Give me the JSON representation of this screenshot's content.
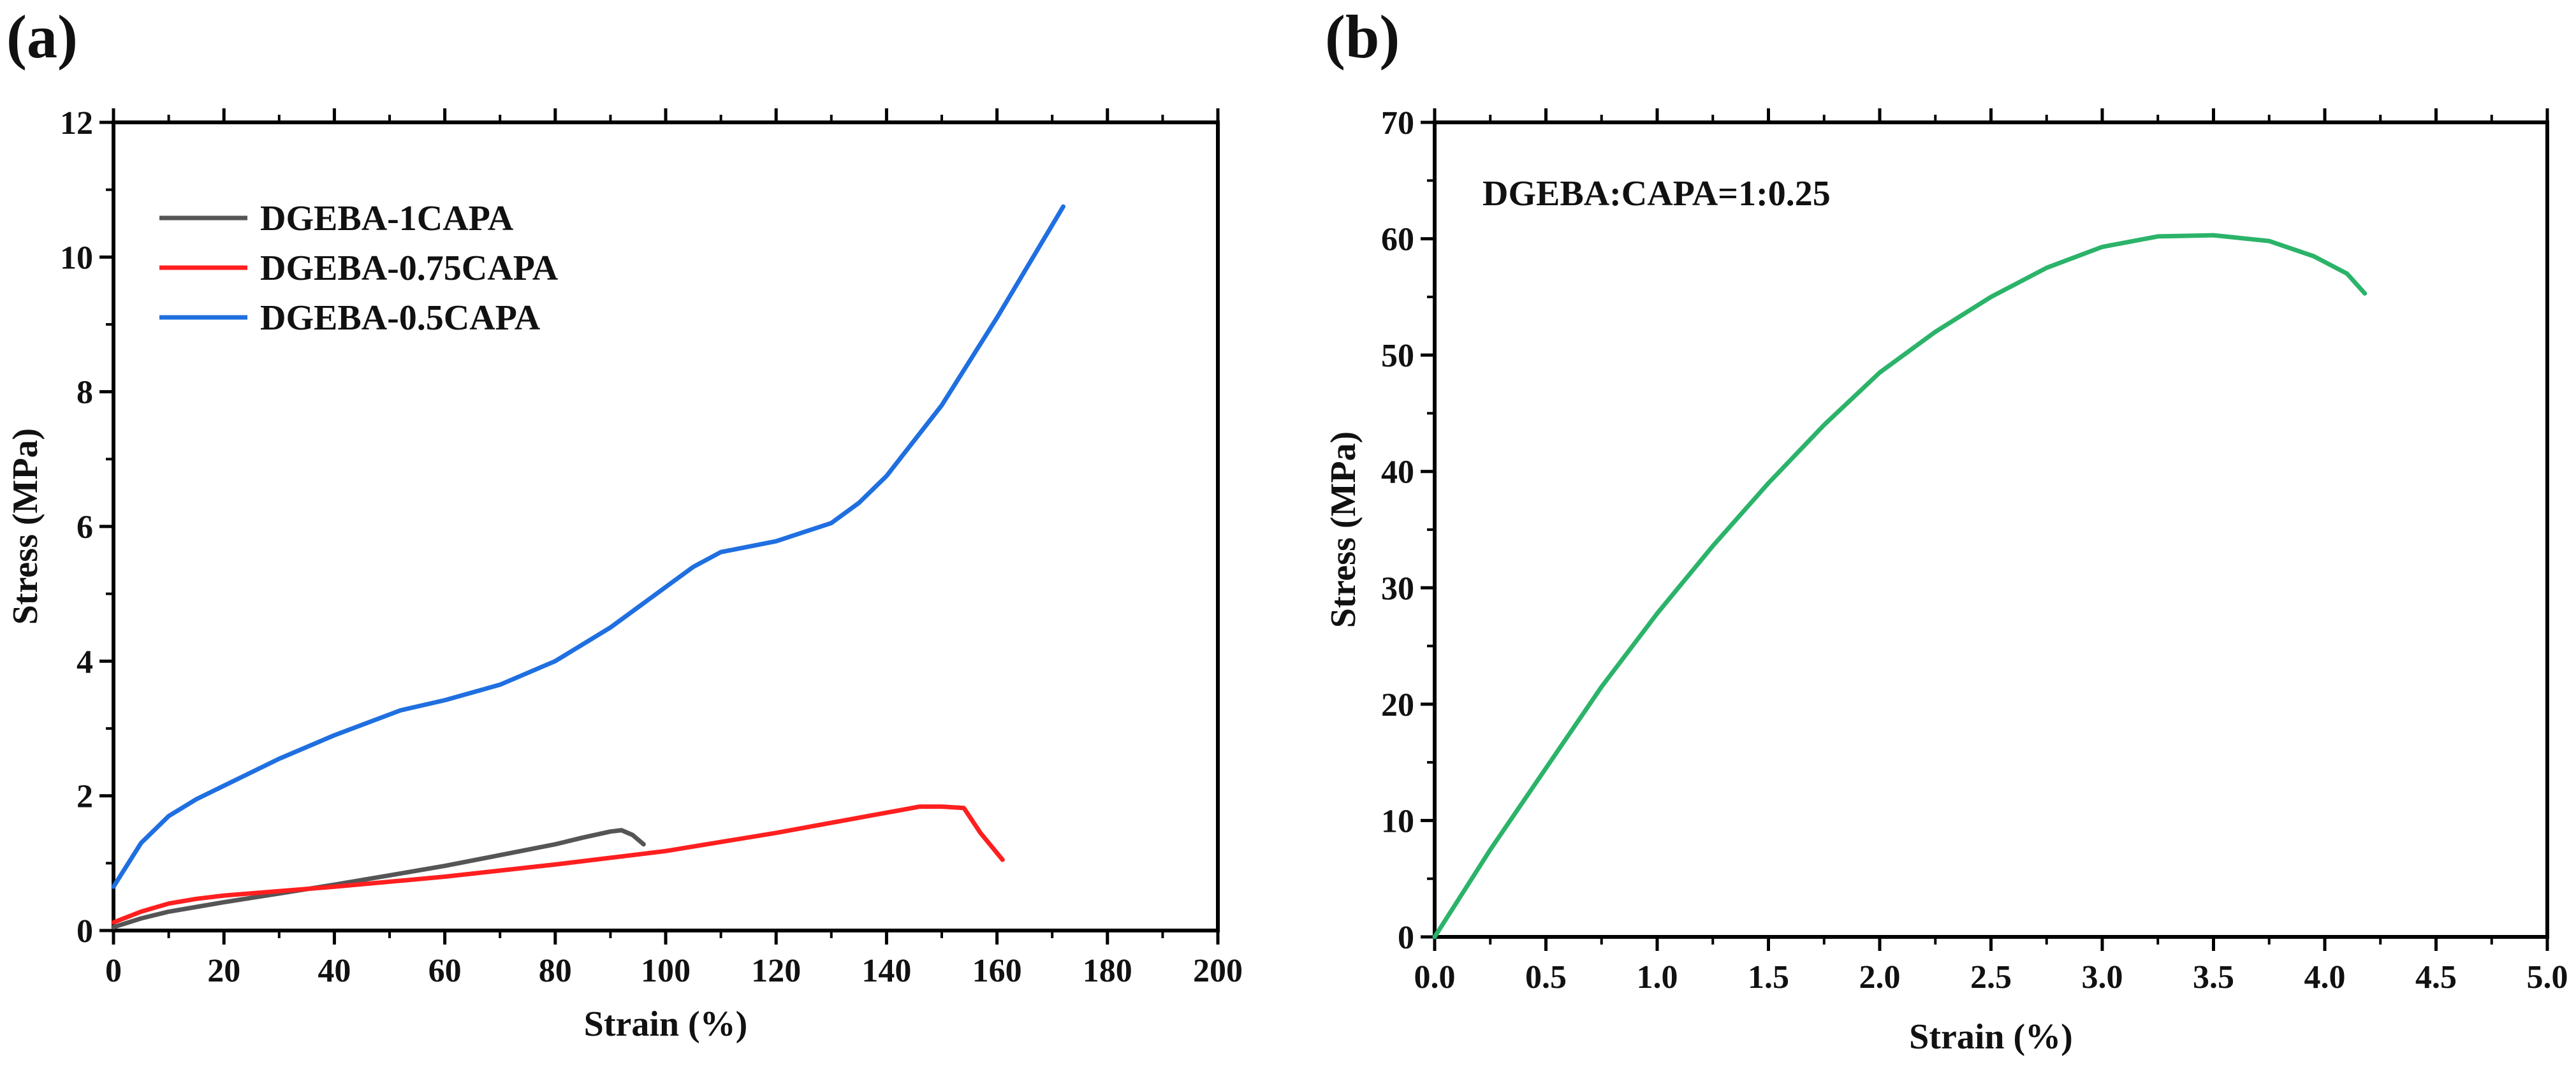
{
  "chart_data": [
    {
      "type": "line",
      "panel_label": "(a)",
      "xlabel": "Strain (%)",
      "ylabel": "Stress (MPa)",
      "xlim": [
        0,
        200
      ],
      "ylim": [
        0,
        12
      ],
      "xticks": [
        0,
        20,
        40,
        60,
        80,
        100,
        120,
        140,
        160,
        180,
        200
      ],
      "yticks": [
        0,
        2,
        4,
        6,
        8,
        10,
        12
      ],
      "legend_position": "top-left",
      "series": [
        {
          "name": "DGEBA-1CAPA",
          "color": "#555555",
          "x": [
            0,
            5,
            10,
            15,
            20,
            30,
            40,
            50,
            60,
            70,
            80,
            85,
            90,
            92,
            94,
            96
          ],
          "y": [
            0.05,
            0.18,
            0.28,
            0.35,
            0.42,
            0.55,
            0.68,
            0.82,
            0.96,
            1.12,
            1.28,
            1.38,
            1.47,
            1.49,
            1.42,
            1.28
          ]
        },
        {
          "name": "DGEBA-0.75CAPA",
          "color": "#ff1f1f",
          "x": [
            0,
            5,
            10,
            15,
            20,
            40,
            60,
            80,
            100,
            120,
            130,
            140,
            146,
            150,
            154,
            157,
            161
          ],
          "y": [
            0.12,
            0.28,
            0.4,
            0.47,
            0.52,
            0.65,
            0.8,
            0.98,
            1.18,
            1.45,
            1.6,
            1.75,
            1.84,
            1.84,
            1.82,
            1.45,
            1.05
          ]
        },
        {
          "name": "DGEBA-0.5CAPA",
          "color": "#1f6fe0",
          "x": [
            0,
            5,
            10,
            15,
            20,
            30,
            40,
            52,
            60,
            70,
            80,
            90,
            100,
            105,
            110,
            120,
            130,
            135,
            140,
            150,
            160,
            172
          ],
          "y": [
            0.65,
            1.3,
            1.7,
            1.95,
            2.15,
            2.55,
            2.9,
            3.27,
            3.42,
            3.65,
            4.0,
            4.5,
            5.1,
            5.4,
            5.62,
            5.78,
            6.05,
            6.35,
            6.75,
            7.8,
            9.1,
            10.75
          ]
        }
      ]
    },
    {
      "type": "line",
      "panel_label": "(b)",
      "xlabel": "Strain (%)",
      "ylabel": "Stress (MPa)",
      "xlim": [
        0,
        5
      ],
      "ylim": [
        0,
        70
      ],
      "xticks": [
        0.0,
        0.5,
        1.0,
        1.5,
        2.0,
        2.5,
        3.0,
        3.5,
        4.0,
        4.5,
        5.0
      ],
      "yticks": [
        0,
        10,
        20,
        30,
        40,
        50,
        60,
        70
      ],
      "annotation": "DGEBA:CAPA=1:0.25",
      "series": [
        {
          "name": "DGEBA:CAPA=1:0.25",
          "color": "#2bb36a",
          "x": [
            0,
            0.25,
            0.5,
            0.75,
            1.0,
            1.25,
            1.5,
            1.75,
            2.0,
            2.25,
            2.5,
            2.75,
            3.0,
            3.25,
            3.5,
            3.75,
            3.95,
            4.1,
            4.18
          ],
          "y": [
            0,
            7.5,
            14.5,
            21.5,
            27.8,
            33.6,
            39.0,
            44.0,
            48.5,
            52.0,
            55.0,
            57.5,
            59.3,
            60.2,
            60.3,
            59.8,
            58.5,
            57.0,
            55.3
          ]
        }
      ]
    }
  ]
}
